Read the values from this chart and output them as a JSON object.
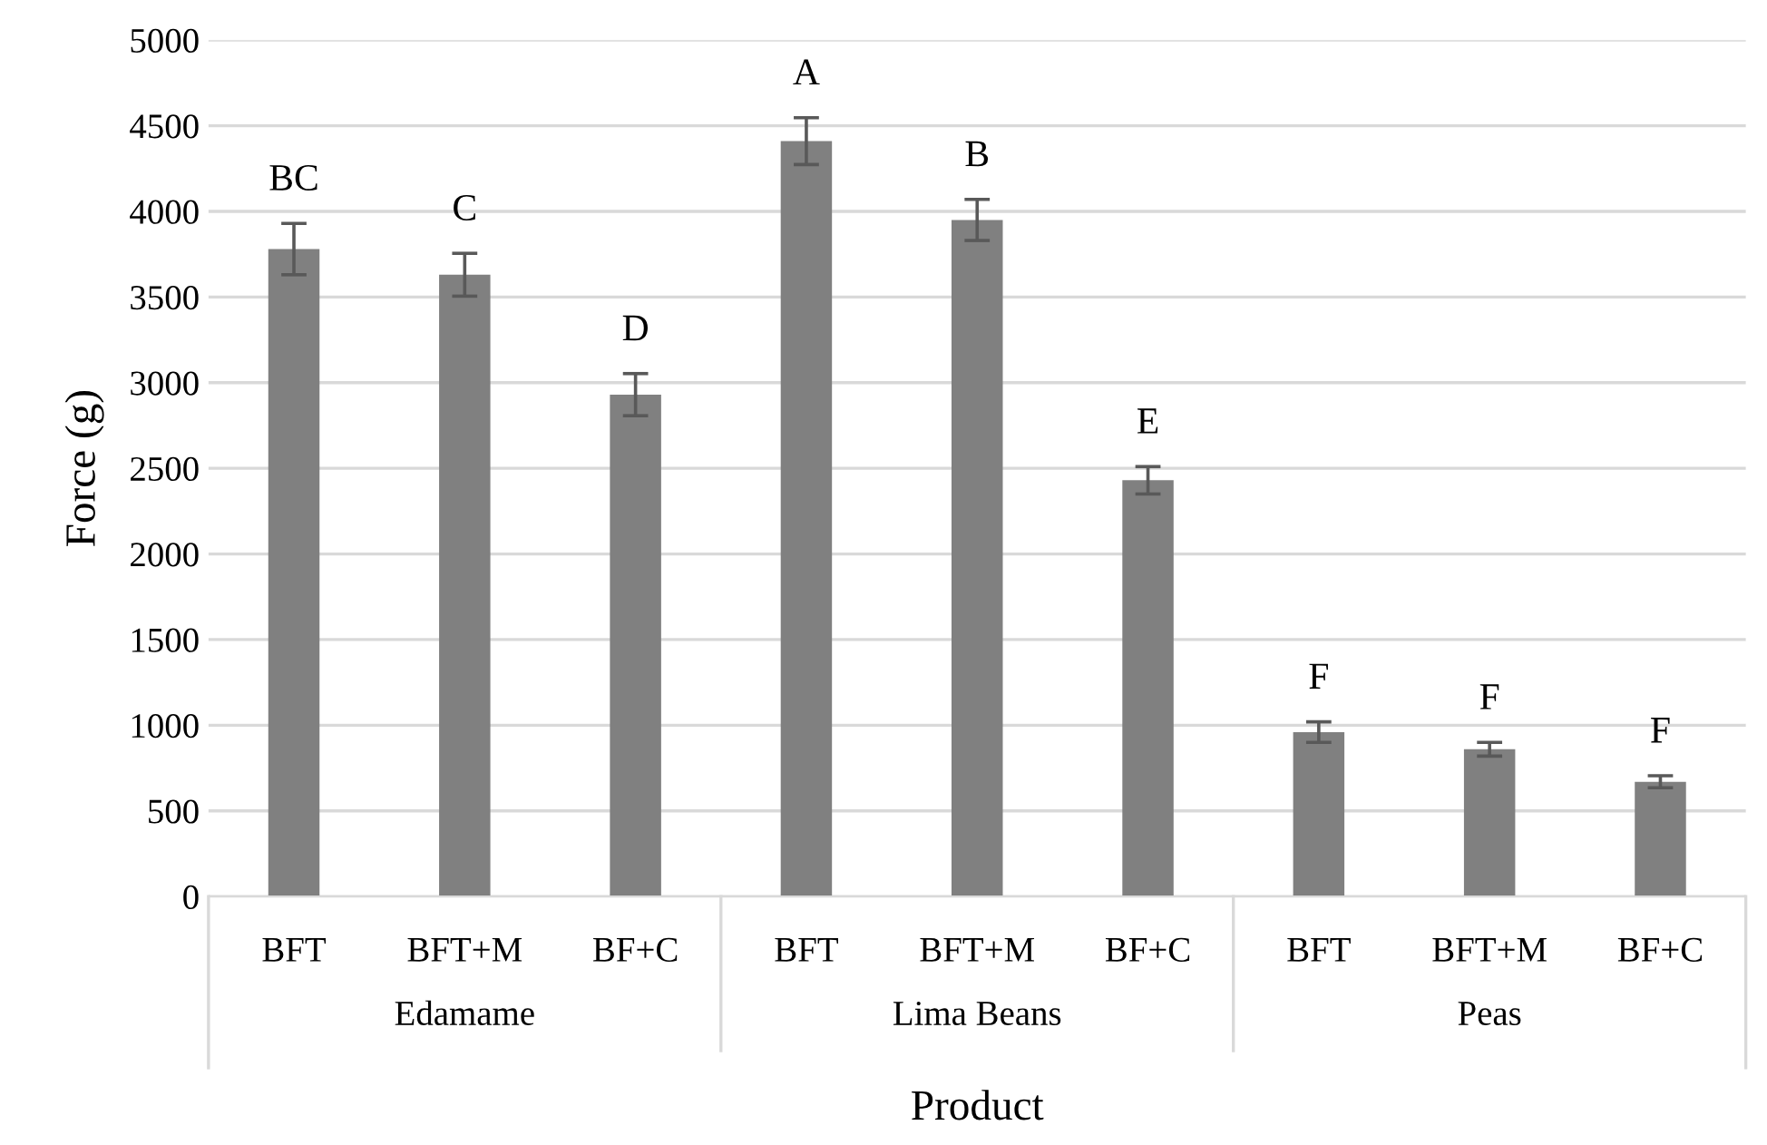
{
  "chart_data": {
    "type": "bar",
    "xlabel": "Product",
    "ylabel": "Force (g)",
    "categories": [
      "BFT",
      "BFT+M",
      "BF+C",
      "BFT",
      "BFT+M",
      "BF+C",
      "BFT",
      "BFT+M",
      "BF+C"
    ],
    "values": [
      3780,
      3630,
      2930,
      4410,
      3950,
      2430,
      960,
      860,
      670
    ],
    "errors": [
      150,
      125,
      123,
      137,
      120,
      80,
      60,
      40,
      35
    ],
    "value_labels": [
      "BC",
      "C",
      "D",
      "A",
      "B",
      "E",
      "F",
      "F",
      "F"
    ],
    "color": "#808080",
    "annotations": [
      "Edamame",
      "Lima Beans",
      "Peas"
    ],
    "ylim": [
      0,
      5000
    ],
    "yticks": [
      0,
      500,
      1000,
      1500,
      2000,
      2500,
      3000,
      3500,
      4000,
      4500,
      5000
    ],
    "grid": "y"
  }
}
